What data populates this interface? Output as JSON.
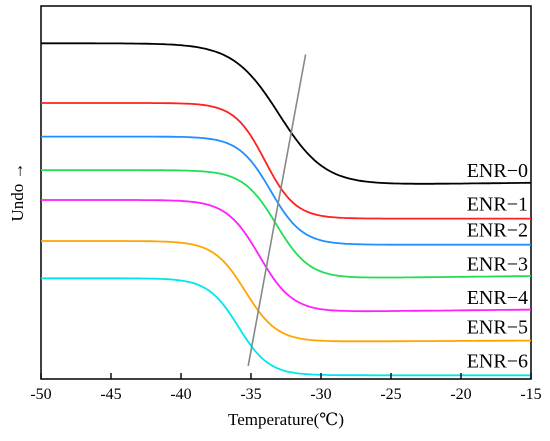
{
  "chart_data": {
    "type": "line",
    "xlabel": "Temperature(℃)",
    "ylabel": "Undo →",
    "xlim": [
      -50,
      -15
    ],
    "x_ticks": [
      "-50",
      "-45",
      "-40",
      "-35",
      "-30",
      "-25",
      "-20",
      "-15"
    ],
    "y_ticks_shown": false,
    "grid": false,
    "legend": "inline labels at right",
    "series": [
      {
        "name": "ENR−0",
        "color": "#000000",
        "upper": 0.9,
        "lower": 0.52,
        "mid": -33.0,
        "width": 3.6,
        "end_rise": 0.006
      },
      {
        "name": "ENR−1",
        "color": "#ff2020",
        "upper": 0.74,
        "lower": 0.43,
        "mid": -34.0,
        "width": 2.4,
        "end_rise": 0.0
      },
      {
        "name": "ENR−2",
        "color": "#1e90ff",
        "upper": 0.65,
        "lower": 0.36,
        "mid": -33.6,
        "width": 2.5,
        "end_rise": 0.0
      },
      {
        "name": "ENR−3",
        "color": "#22dd55",
        "upper": 0.56,
        "lower": 0.27,
        "mid": -33.2,
        "width": 2.6,
        "end_rise": 0.006
      },
      {
        "name": "ENR−4",
        "color": "#ff1fff",
        "upper": 0.48,
        "lower": 0.18,
        "mid": -34.4,
        "width": 2.6,
        "end_rise": 0.006
      },
      {
        "name": "ENR−5",
        "color": "#ffa500",
        "upper": 0.37,
        "lower": 0.1,
        "mid": -35.4,
        "width": 2.5,
        "end_rise": 0.003
      },
      {
        "name": "ENR−6",
        "color": "#00e5ee",
        "upper": 0.27,
        "lower": 0.01,
        "mid": -35.9,
        "width": 2.4,
        "end_rise": 0.0
      }
    ],
    "guide_line": {
      "color": "#888888",
      "x": [
        -35.2,
        -31.1
      ],
      "y": [
        0.035,
        0.87
      ]
    }
  }
}
